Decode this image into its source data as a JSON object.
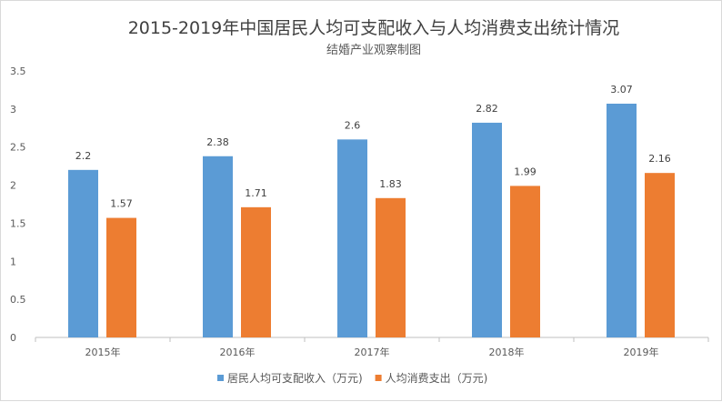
{
  "chart_data": {
    "type": "bar",
    "title": "2015-2019年中国居民人均可支配收入与人均消费支出统计情况",
    "subtitle": "结婚产业观察制图",
    "categories": [
      "2015年",
      "2016年",
      "2017年",
      "2018年",
      "2019年"
    ],
    "series": [
      {
        "name": "居民人均可支配收入（万元)",
        "values": [
          2.2,
          2.38,
          2.6,
          2.82,
          3.07
        ],
        "color": "#5b9bd5"
      },
      {
        "name": "人均消费支出（万元)",
        "values": [
          1.57,
          1.71,
          1.83,
          1.99,
          2.16
        ],
        "color": "#ed7d31"
      }
    ],
    "yticks": [
      "0",
      "0.5",
      "1",
      "1.5",
      "2",
      "2.5",
      "3",
      "3.5"
    ],
    "ylim": [
      0,
      3.5
    ],
    "grid": false,
    "legend_position": "bottom",
    "data_labels": true
  }
}
